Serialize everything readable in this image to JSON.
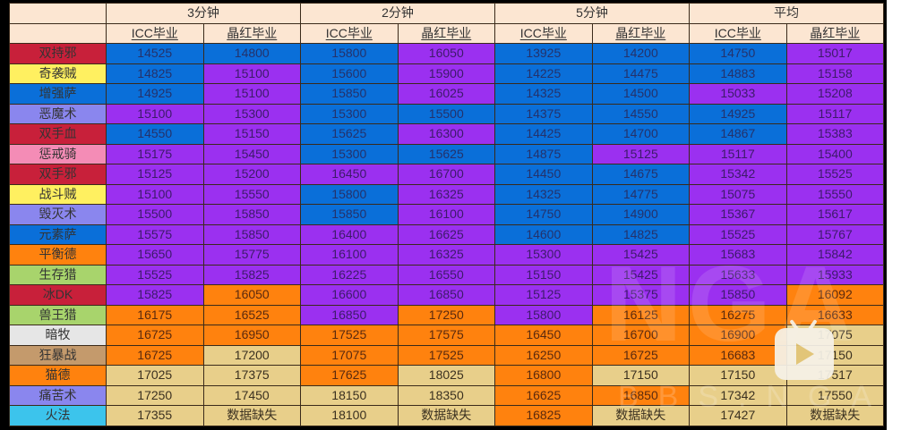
{
  "header": {
    "groups": [
      "3分钟",
      "2分钟",
      "5分钟",
      "平均"
    ],
    "subcols": [
      "ICC毕业",
      "晶红毕业",
      "ICC毕业",
      "晶红毕业",
      "ICC毕业",
      "晶红毕业",
      "ICC毕业",
      "晶红毕业"
    ]
  },
  "colors": {
    "blue": "#0a6fd9",
    "purple": "#9b30f0",
    "orange": "#ff820e",
    "tan": "#e8cf8a",
    "header_bg": "#fce6d2"
  },
  "rows": [
    {
      "class": "双持邪",
      "class_color": "#c8203a",
      "values": [
        "14525",
        "14800",
        "15800",
        "16050",
        "13925",
        "14200",
        "14750",
        "15017"
      ],
      "tiers": [
        "blue",
        "blue",
        "blue",
        "purple",
        "blue",
        "blue",
        "blue",
        "purple"
      ]
    },
    {
      "class": "奇袭贼",
      "class_color": "#fff060",
      "values": [
        "14825",
        "15100",
        "15600",
        "15900",
        "14225",
        "14475",
        "14883",
        "15158"
      ],
      "tiers": [
        "blue",
        "purple",
        "blue",
        "purple",
        "blue",
        "blue",
        "blue",
        "purple"
      ]
    },
    {
      "class": "增强萨",
      "class_color": "#0a6fd9",
      "values": [
        "14925",
        "15100",
        "15850",
        "16025",
        "14325",
        "14500",
        "15033",
        "15208"
      ],
      "tiers": [
        "blue",
        "purple",
        "blue",
        "purple",
        "blue",
        "blue",
        "purple",
        "purple"
      ]
    },
    {
      "class": "恶魔术",
      "class_color": "#8a86ee",
      "values": [
        "15100",
        "15300",
        "15300",
        "15500",
        "14375",
        "14550",
        "14925",
        "15117"
      ],
      "tiers": [
        "purple",
        "purple",
        "blue",
        "blue",
        "blue",
        "blue",
        "blue",
        "purple"
      ]
    },
    {
      "class": "双手血",
      "class_color": "#c8203a",
      "values": [
        "14550",
        "15150",
        "15625",
        "16300",
        "14425",
        "14700",
        "14867",
        "15383"
      ],
      "tiers": [
        "blue",
        "purple",
        "blue",
        "purple",
        "blue",
        "blue",
        "blue",
        "purple"
      ]
    },
    {
      "class": "惩戒骑",
      "class_color": "#f48cb6",
      "values": [
        "15175",
        "15450",
        "15300",
        "15625",
        "14875",
        "15125",
        "15117",
        "15400"
      ],
      "tiers": [
        "purple",
        "purple",
        "blue",
        "blue",
        "blue",
        "purple",
        "purple",
        "purple"
      ]
    },
    {
      "class": "双手邪",
      "class_color": "#c8203a",
      "values": [
        "15125",
        "15200",
        "16450",
        "16700",
        "14450",
        "14675",
        "15342",
        "15525"
      ],
      "tiers": [
        "purple",
        "purple",
        "purple",
        "purple",
        "blue",
        "blue",
        "purple",
        "purple"
      ]
    },
    {
      "class": "战斗贼",
      "class_color": "#fff060",
      "values": [
        "15100",
        "15550",
        "15800",
        "16325",
        "14325",
        "14775",
        "15075",
        "15550"
      ],
      "tiers": [
        "purple",
        "purple",
        "blue",
        "purple",
        "blue",
        "blue",
        "purple",
        "purple"
      ]
    },
    {
      "class": "毁灭术",
      "class_color": "#8a86ee",
      "values": [
        "15500",
        "15850",
        "15850",
        "16100",
        "14750",
        "14900",
        "15367",
        "15617"
      ],
      "tiers": [
        "purple",
        "purple",
        "blue",
        "purple",
        "blue",
        "blue",
        "purple",
        "purple"
      ]
    },
    {
      "class": "元素萨",
      "class_color": "#0a6fd9",
      "values": [
        "15575",
        "15850",
        "16400",
        "16625",
        "14600",
        "14825",
        "15525",
        "15767"
      ],
      "tiers": [
        "purple",
        "purple",
        "purple",
        "purple",
        "blue",
        "blue",
        "purple",
        "purple"
      ]
    },
    {
      "class": "平衡德",
      "class_color": "#ff820e",
      "values": [
        "15650",
        "15775",
        "16100",
        "16325",
        "15300",
        "15425",
        "15683",
        "15842"
      ],
      "tiers": [
        "purple",
        "purple",
        "purple",
        "purple",
        "purple",
        "purple",
        "purple",
        "purple"
      ]
    },
    {
      "class": "生存猎",
      "class_color": "#a8d46c",
      "values": [
        "15525",
        "15825",
        "16225",
        "16550",
        "15150",
        "15425",
        "15633",
        "15933"
      ],
      "tiers": [
        "purple",
        "purple",
        "purple",
        "purple",
        "purple",
        "purple",
        "purple",
        "purple"
      ]
    },
    {
      "class": "冰DK",
      "class_color": "#c8203a",
      "values": [
        "15825",
        "16050",
        "16600",
        "16850",
        "15125",
        "15375",
        "15850",
        "16092"
      ],
      "tiers": [
        "purple",
        "orange",
        "purple",
        "purple",
        "purple",
        "purple",
        "purple",
        "orange"
      ]
    },
    {
      "class": "兽王猎",
      "class_color": "#a8d46c",
      "values": [
        "16175",
        "16525",
        "16850",
        "17250",
        "15800",
        "16125",
        "16275",
        "16633"
      ],
      "tiers": [
        "orange",
        "orange",
        "purple",
        "orange",
        "purple",
        "orange",
        "orange",
        "orange"
      ]
    },
    {
      "class": "暗牧",
      "class_color": "#e6e6e6",
      "values": [
        "16725",
        "16950",
        "17525",
        "17575",
        "16450",
        "16700",
        "16900",
        "17075"
      ],
      "tiers": [
        "orange",
        "orange",
        "orange",
        "orange",
        "orange",
        "orange",
        "orange",
        "tan"
      ]
    },
    {
      "class": "狂暴战",
      "class_color": "#c49a6c",
      "values": [
        "16725",
        "17200",
        "17075",
        "17525",
        "16250",
        "16725",
        "16683",
        "17150"
      ],
      "tiers": [
        "orange",
        "tan",
        "orange",
        "orange",
        "orange",
        "orange",
        "orange",
        "tan"
      ]
    },
    {
      "class": "猫德",
      "class_color": "#ff820e",
      "values": [
        "17025",
        "17375",
        "17625",
        "18025",
        "16800",
        "17150",
        "17150",
        "17517"
      ],
      "tiers": [
        "tan",
        "tan",
        "orange",
        "tan",
        "orange",
        "tan",
        "tan",
        "tan"
      ]
    },
    {
      "class": "痛苦术",
      "class_color": "#8a86ee",
      "values": [
        "17250",
        "17450",
        "18150",
        "18350",
        "16625",
        "16850",
        "17342",
        "17550"
      ],
      "tiers": [
        "tan",
        "tan",
        "tan",
        "tan",
        "orange",
        "orange",
        "tan",
        "tan"
      ]
    },
    {
      "class": "火法",
      "class_color": "#3cc4ec",
      "values": [
        "17355",
        "数据缺失",
        "18100",
        "数据缺失",
        "16825",
        "数据缺失",
        "17427",
        "数据缺失"
      ],
      "tiers": [
        "tan",
        "tan",
        "tan",
        "tan",
        "orange",
        "tan",
        "tan",
        "tan"
      ]
    }
  ],
  "watermark": {
    "site": "NGA",
    "url_text": "BBS.NGA.CN"
  }
}
